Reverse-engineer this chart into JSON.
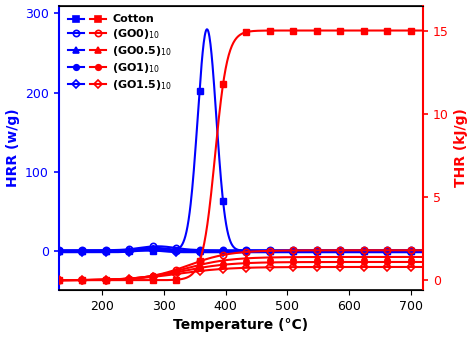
{
  "xlabel": "Temperature (°C)",
  "ylabel_left": "HRR (w/g)",
  "ylabel_right": "THR (kJ/g)",
  "xlim": [
    130,
    720
  ],
  "ylim_left": [
    -50,
    310
  ],
  "ylim_right": [
    -0.6,
    16.5
  ],
  "yticks_left": [
    0,
    100,
    200,
    300
  ],
  "yticks_right": [
    0,
    5,
    10,
    15
  ],
  "xticks": [
    200,
    300,
    400,
    500,
    600,
    700
  ],
  "blue_color": "#0000FF",
  "red_color": "#FF0000",
  "legend_labels": [
    "Cotton",
    "(GO0)$_{10}$",
    "(GO0.5)$_{10}$",
    "(GO1)$_{10}$",
    "(GO1.5)$_{10}$"
  ]
}
